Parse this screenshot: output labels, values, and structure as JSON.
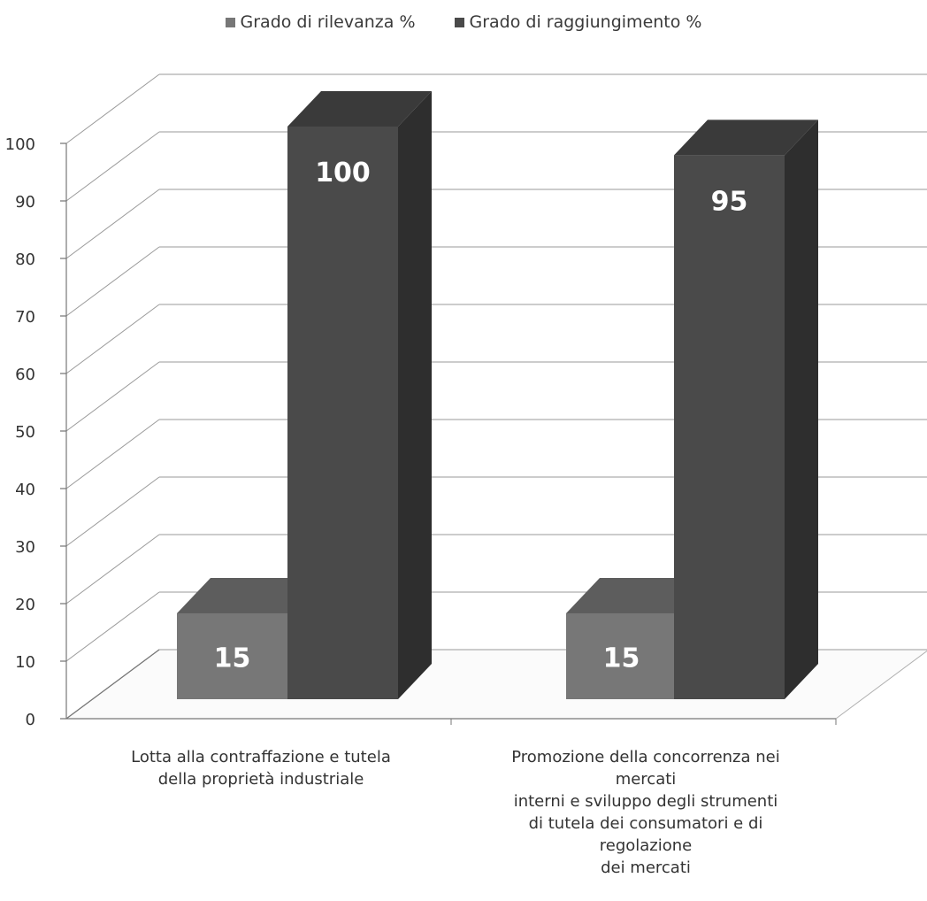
{
  "chart_data": {
    "type": "bar",
    "categories": [
      "Lotta alla contraffazione e tutela\ndella proprietà industriale",
      "Promozione della concorrenza nei\nmercati\ninterni e sviluppo degli strumenti\ndi tutela dei consumatori e di\nregolazione\ndei mercati"
    ],
    "series": [
      {
        "name": "Grado di rilevanza %",
        "values": [
          15,
          15
        ],
        "color": "#777777"
      },
      {
        "name": "Grado di raggiungimento %",
        "values": [
          100,
          95
        ],
        "color": "#4a4a4a"
      }
    ],
    "ylim": [
      0,
      100
    ],
    "yticks": [
      0,
      10,
      20,
      30,
      40,
      50,
      60,
      70,
      80,
      90,
      100
    ],
    "grid": true,
    "legend_position": "top",
    "data_labels": true
  }
}
